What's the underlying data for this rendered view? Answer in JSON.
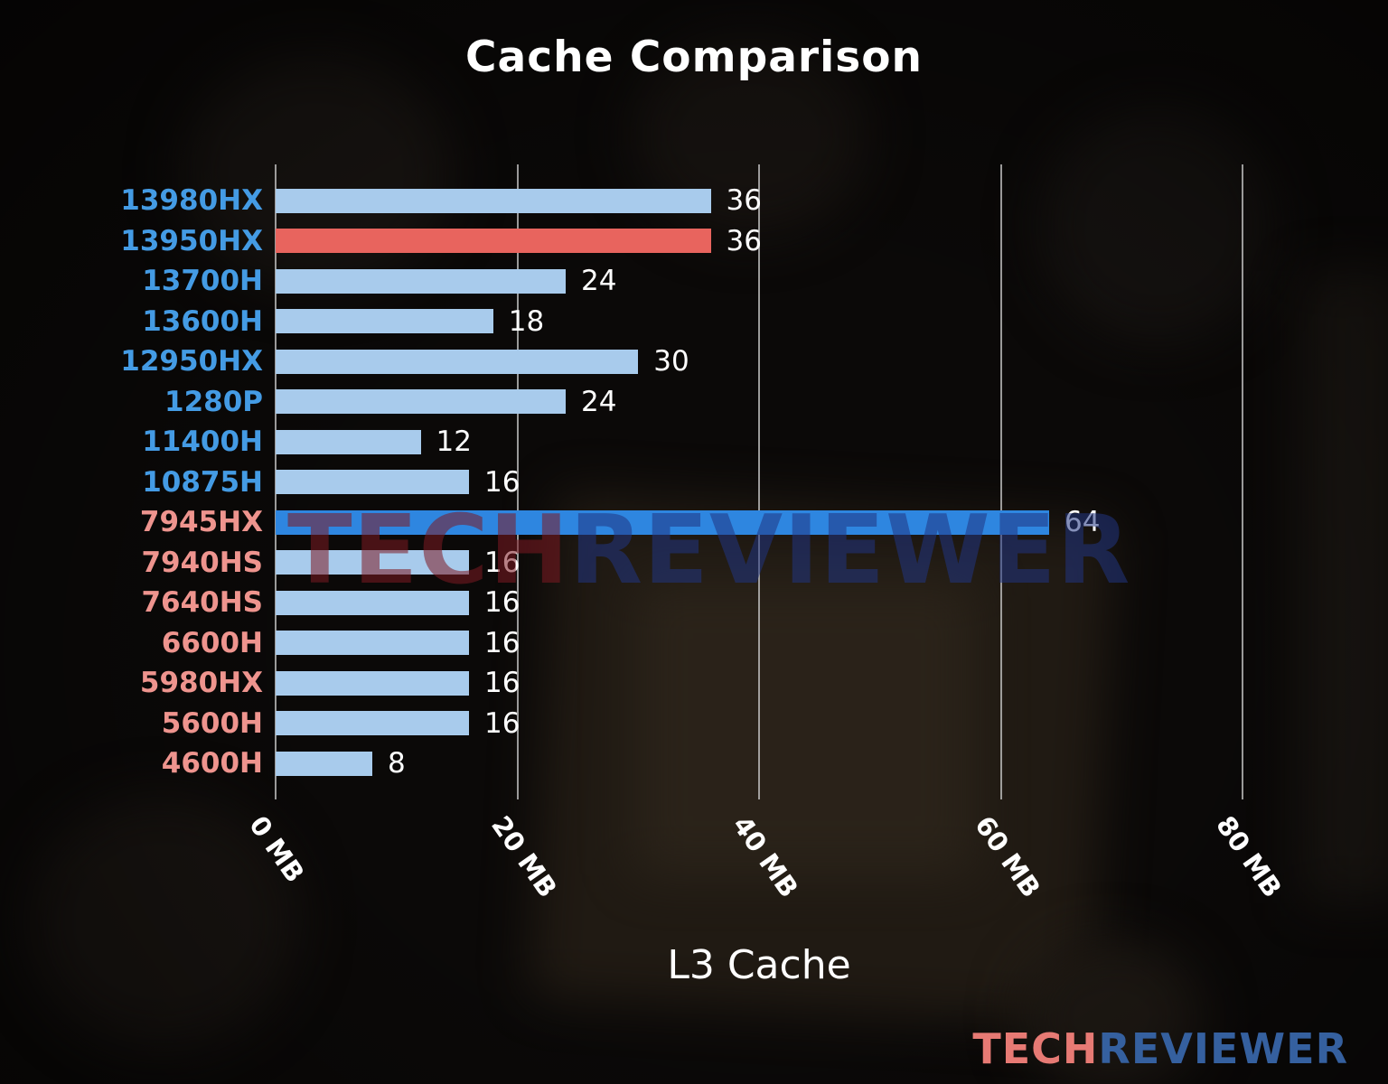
{
  "title": "Cache Comparison",
  "xlabel": "L3 Cache",
  "watermark": {
    "part1": "TECH",
    "part2": "REVIEWER"
  },
  "logo": {
    "part1": "TECH",
    "part2": "REVIEWER"
  },
  "colors": {
    "bar_default": "#A8CBEC",
    "bar_highlight_red": "#E8645E",
    "bar_highlight_blue": "#2E86E0",
    "label_blue": "#449BE4",
    "label_salmon": "#EE948E",
    "grid": "#C3C3C3",
    "value_text": "#FFFFFF"
  },
  "chart_data": {
    "type": "bar",
    "orientation": "horizontal",
    "title": "Cache Comparison",
    "xlabel": "L3 Cache",
    "xlim": [
      0,
      80
    ],
    "grid": true,
    "xticks": [
      {
        "value": 0,
        "label": "0 MB"
      },
      {
        "value": 20,
        "label": "20 MB"
      },
      {
        "value": 40,
        "label": "40 MB"
      },
      {
        "value": 60,
        "label": "60 MB"
      },
      {
        "value": 80,
        "label": "80 MB"
      }
    ],
    "rows": [
      {
        "label": "13980HX",
        "value": 36,
        "label_color": "#449BE4",
        "bar_color": "#A8CBEC"
      },
      {
        "label": "13950HX",
        "value": 36,
        "label_color": "#449BE4",
        "bar_color": "#E8645E"
      },
      {
        "label": "13700H",
        "value": 24,
        "label_color": "#449BE4",
        "bar_color": "#A8CBEC"
      },
      {
        "label": "13600H",
        "value": 18,
        "label_color": "#449BE4",
        "bar_color": "#A8CBEC"
      },
      {
        "label": "12950HX",
        "value": 30,
        "label_color": "#449BE4",
        "bar_color": "#A8CBEC"
      },
      {
        "label": "1280P",
        "value": 24,
        "label_color": "#449BE4",
        "bar_color": "#A8CBEC"
      },
      {
        "label": "11400H",
        "value": 12,
        "label_color": "#449BE4",
        "bar_color": "#A8CBEC"
      },
      {
        "label": "10875H",
        "value": 16,
        "label_color": "#449BE4",
        "bar_color": "#A8CBEC"
      },
      {
        "label": "7945HX",
        "value": 64,
        "label_color": "#EE948E",
        "bar_color": "#2E86E0"
      },
      {
        "label": "7940HS",
        "value": 16,
        "label_color": "#EE948E",
        "bar_color": "#A8CBEC"
      },
      {
        "label": "7640HS",
        "value": 16,
        "label_color": "#EE948E",
        "bar_color": "#A8CBEC"
      },
      {
        "label": "6600H",
        "value": 16,
        "label_color": "#EE948E",
        "bar_color": "#A8CBEC"
      },
      {
        "label": "5980HX",
        "value": 16,
        "label_color": "#EE948E",
        "bar_color": "#A8CBEC"
      },
      {
        "label": "5600H",
        "value": 16,
        "label_color": "#EE948E",
        "bar_color": "#A8CBEC"
      },
      {
        "label": "4600H",
        "value": 8,
        "label_color": "#EE948E",
        "bar_color": "#A8CBEC"
      }
    ]
  }
}
